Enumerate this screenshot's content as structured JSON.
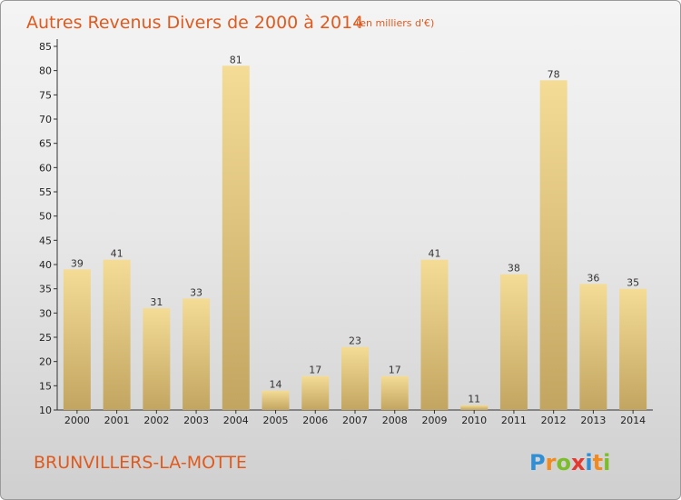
{
  "header": {
    "title": "Autres Revenus Divers de 2000 à 2014",
    "unit": "(en milliers d'€)"
  },
  "footer": {
    "city": "BRUNVILLERS-LA-MOTTE",
    "logo_letters": [
      "P",
      "r",
      "o",
      "x",
      "i",
      "t",
      "i"
    ],
    "logo_colors": [
      "#2e8fd6",
      "#f28a1e",
      "#7bbd2a",
      "#e23a2e",
      "#2e8fd6",
      "#f28a1e",
      "#7bbd2a"
    ]
  },
  "chart_data": {
    "type": "bar",
    "categories": [
      "2000",
      "2001",
      "2002",
      "2003",
      "2004",
      "2005",
      "2006",
      "2007",
      "2008",
      "2009",
      "2010",
      "2011",
      "2012",
      "2013",
      "2014"
    ],
    "values": [
      39,
      41,
      31,
      33,
      81,
      14,
      17,
      23,
      17,
      41,
      11,
      38,
      78,
      36,
      35
    ],
    "yticks": [
      10,
      15,
      20,
      25,
      30,
      35,
      40,
      45,
      50,
      55,
      60,
      65,
      70,
      75,
      80,
      85
    ],
    "ylim": [
      10,
      85
    ],
    "grid": false,
    "bar_colors": {
      "light": "#f4dc96",
      "dark": "#c2a560"
    }
  }
}
